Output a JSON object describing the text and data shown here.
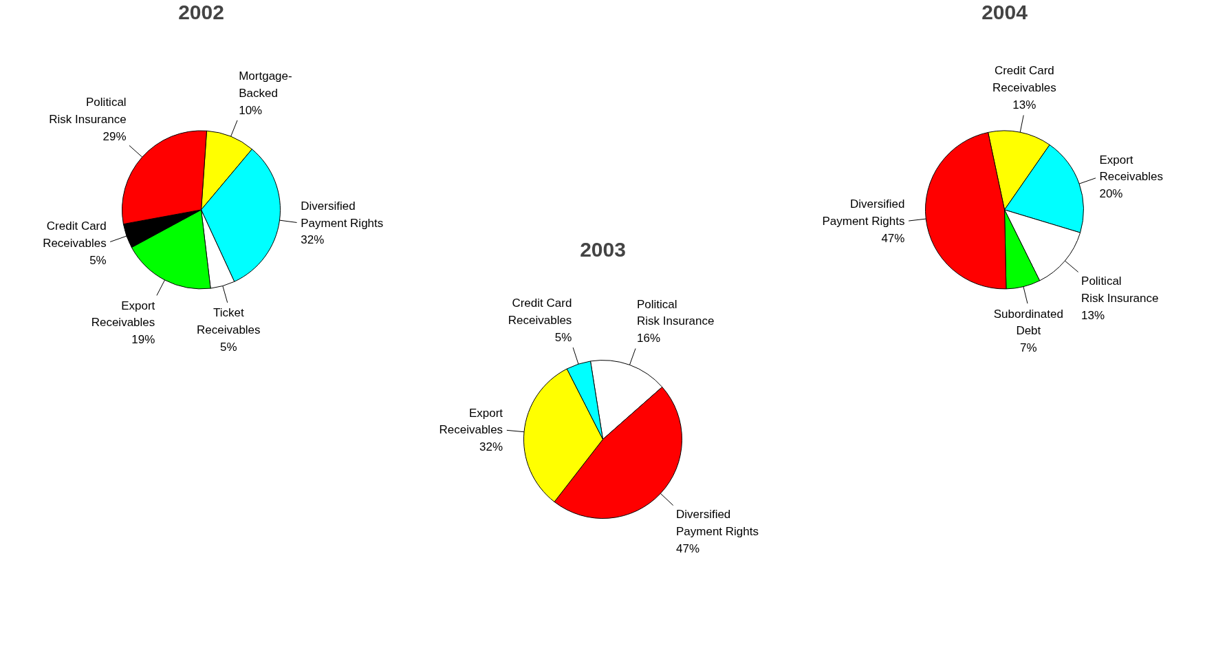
{
  "chart_data": [
    {
      "type": "pie",
      "title": "2002",
      "categories": [
        "Mortgage-\nBacked",
        "Diversified\nPayment Rights",
        "Ticket\nReceivables",
        "Export\nReceivables",
        "Credit Card\nReceivables",
        "Political\nRisk Insurance"
      ],
      "values": [
        10,
        32,
        5,
        19,
        5,
        29
      ],
      "value_labels": [
        "10%",
        "32%",
        "5%",
        "19%",
        "5%",
        "29%"
      ],
      "colors": [
        "#ffff00",
        "#00ffff",
        "#ffffff",
        "#00ff00",
        "#000000",
        "#ff0000"
      ]
    },
    {
      "type": "pie",
      "title": "2003",
      "categories": [
        "Political\nRisk Insurance",
        "Diversified\nPayment Rights",
        "Export\nReceivables",
        "Credit Card\nReceivables"
      ],
      "values": [
        16,
        47,
        32,
        5
      ],
      "value_labels": [
        "16%",
        "47%",
        "32%",
        "5%"
      ],
      "colors": [
        "#ffffff",
        "#ff0000",
        "#ffff00",
        "#00ffff"
      ]
    },
    {
      "type": "pie",
      "title": "2004",
      "categories": [
        "Credit Card\nReceivables",
        "Export\nReceivables",
        "Political\nRisk Insurance",
        "Subordinated\nDebt",
        "Diversified\nPayment Rights"
      ],
      "values": [
        13,
        20,
        13,
        7,
        47
      ],
      "value_labels": [
        "13%",
        "20%",
        "13%",
        "7%",
        "47%"
      ],
      "colors": [
        "#ffff00",
        "#00ffff",
        "#ffffff",
        "#00ff00",
        "#ff0000"
      ]
    }
  ]
}
